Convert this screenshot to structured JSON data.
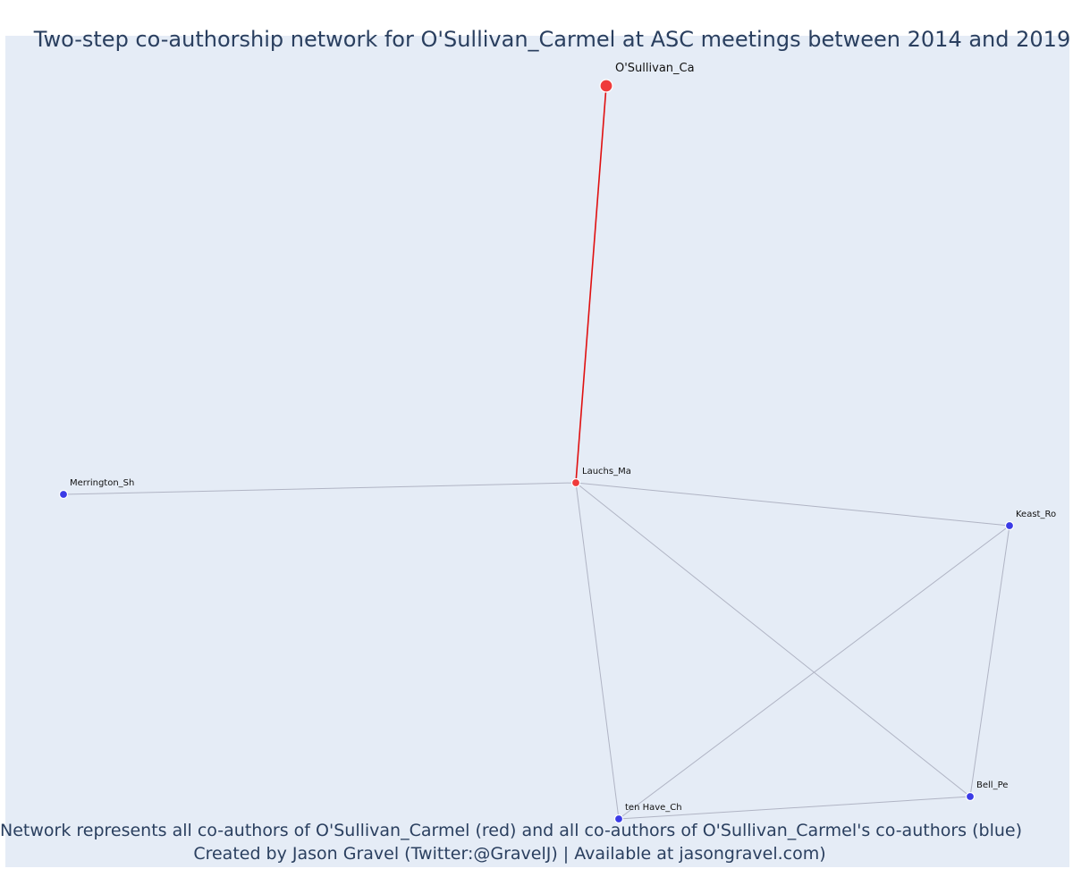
{
  "title": "Two-step co-authorship network for O'Sullivan_Carmel at ASC meetings between 2014 and 2019",
  "captions": {
    "line1": "Network represents all co-authors of O'Sullivan_Carmel (red) and all co-authors of O'Sullivan_Carmel's co-authors (blue)",
    "line2": "Created by Jason Gravel (Twitter:@GravelJ) | Available at jasongravel.com)"
  },
  "colors": {
    "background": "#e5ecf6",
    "red_node": "#ef3b3b",
    "blue_node": "#3b3be6",
    "red_edge": "#e01010",
    "grey_edge": "#b0b4c4",
    "text": "#2a3f5f"
  },
  "nodes": [
    {
      "id": "osullivan",
      "label": "O'Sullivan_Ca",
      "group": "red",
      "focal": true
    },
    {
      "id": "lauchs",
      "label": "Lauchs_Ma",
      "group": "red",
      "focal": false
    },
    {
      "id": "merrington",
      "label": "Merrington_Sh",
      "group": "blue",
      "focal": false
    },
    {
      "id": "keast",
      "label": "Keast_Ro",
      "group": "blue",
      "focal": false
    },
    {
      "id": "bell",
      "label": "Bell_Pe",
      "group": "blue",
      "focal": false
    },
    {
      "id": "tenhave",
      "label": "ten Have_Ch",
      "group": "blue",
      "focal": false
    }
  ],
  "edges": [
    {
      "source": "osullivan",
      "target": "lauchs",
      "type": "red"
    },
    {
      "source": "lauchs",
      "target": "merrington",
      "type": "grey"
    },
    {
      "source": "lauchs",
      "target": "keast",
      "type": "grey"
    },
    {
      "source": "lauchs",
      "target": "bell",
      "type": "grey"
    },
    {
      "source": "lauchs",
      "target": "tenhave",
      "type": "grey"
    },
    {
      "source": "keast",
      "target": "bell",
      "type": "grey"
    },
    {
      "source": "keast",
      "target": "tenhave",
      "type": "grey"
    },
    {
      "source": "bell",
      "target": "tenhave",
      "type": "grey"
    }
  ]
}
